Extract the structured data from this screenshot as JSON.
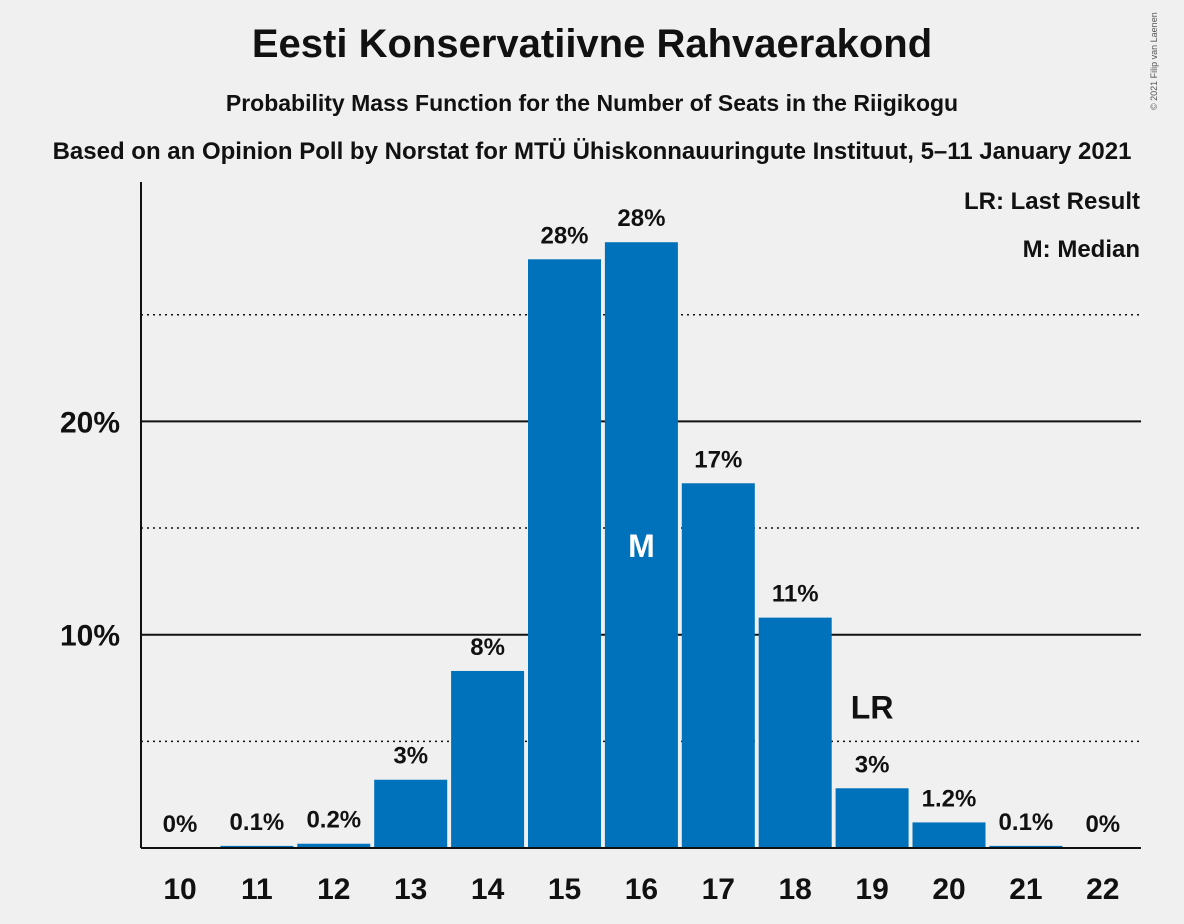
{
  "chart_data": {
    "type": "bar",
    "title": "Eesti Konservatiivne Rahvaerakond",
    "subtitle": "Probability Mass Function for the Number of Seats in the Riigikogu",
    "subtitle2": "Based on an Opinion Poll by Norstat for MTÜ Ühiskonnauuringute Instituut, 5–11 January 2021",
    "copyright": "© 2021 Filip van Laenen",
    "categories": [
      "10",
      "11",
      "12",
      "13",
      "14",
      "15",
      "16",
      "17",
      "18",
      "19",
      "20",
      "21",
      "22"
    ],
    "values": [
      0,
      0.1,
      0.2,
      3.2,
      8.3,
      27.6,
      28.4,
      17.1,
      10.8,
      2.8,
      1.2,
      0.1,
      0
    ],
    "labels": [
      "0%",
      "0.1%",
      "0.2%",
      "3%",
      "8%",
      "28%",
      "28%",
      "17%",
      "11%",
      "3%",
      "1.2%",
      "0.1%",
      "0%"
    ],
    "ylim": [
      0,
      31
    ],
    "yticks": [
      {
        "value": 10,
        "label": "10%"
      },
      {
        "value": 20,
        "label": "20%"
      }
    ],
    "minor_gridlines": [
      5,
      15,
      25
    ],
    "median_category": "16",
    "median_marker": "M",
    "last_result_category": "19",
    "last_result_marker": "LR",
    "legend": [
      "LR: Last Result",
      "M: Median"
    ],
    "bar_color": "#0072bb",
    "xlabel": "",
    "ylabel": ""
  }
}
